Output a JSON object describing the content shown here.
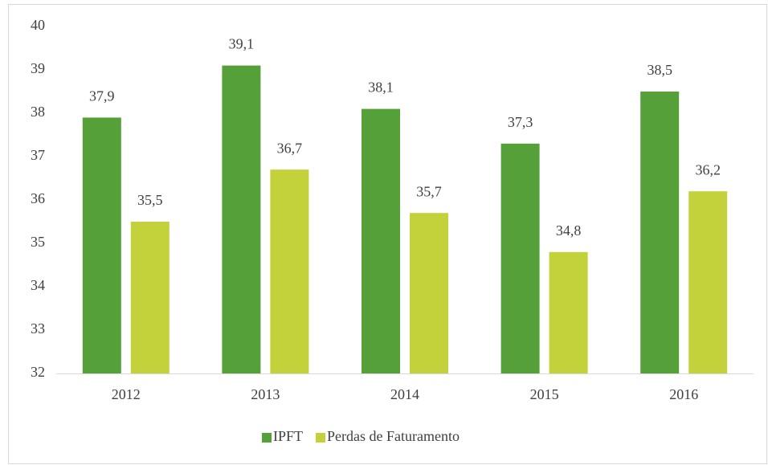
{
  "chart_data": {
    "type": "bar",
    "categories": [
      "2012",
      "2013",
      "2014",
      "2015",
      "2016"
    ],
    "series": [
      {
        "name": "IPFT",
        "color": "#56a03a",
        "values": [
          37.9,
          39.1,
          38.1,
          37.3,
          38.5
        ],
        "value_labels": [
          "37,9",
          "39,1",
          "38,1",
          "37,3",
          "38,5"
        ]
      },
      {
        "name": "Perdas de Faturamento",
        "color": "#c3d13a",
        "values": [
          35.5,
          36.7,
          35.7,
          34.8,
          36.2
        ],
        "value_labels": [
          "35,5",
          "36,7",
          "35,7",
          "34,8",
          "36,2"
        ]
      }
    ],
    "ylim": [
      32,
      40
    ],
    "yticks": [
      32,
      33,
      34,
      35,
      36,
      37,
      38,
      39,
      40
    ],
    "grid": false,
    "legend": "bottom"
  }
}
